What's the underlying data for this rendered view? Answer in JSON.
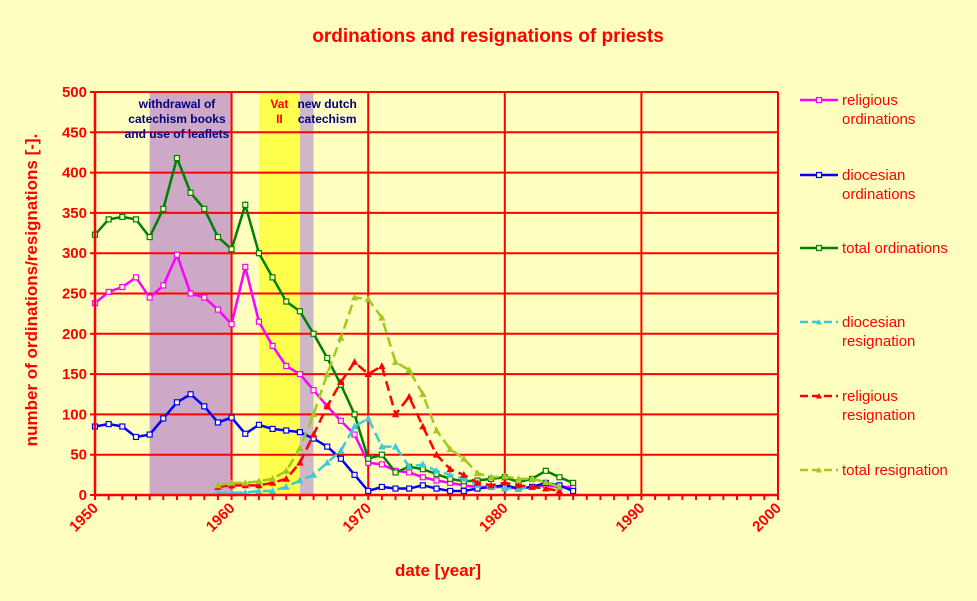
{
  "chart_data": {
    "type": "line",
    "title": "ordinations and resignations of priests",
    "xlabel": "date [year]",
    "ylabel": "number of ordinations/resignations [-].",
    "xlim": [
      1950,
      2000
    ],
    "ylim": [
      0,
      500
    ],
    "x_ticks": [
      "1950",
      "1960",
      "1970",
      "1980",
      "1990",
      "2000"
    ],
    "y_ticks": [
      "0",
      "50",
      "100",
      "150",
      "200",
      "250",
      "300",
      "350",
      "400",
      "450",
      "500"
    ],
    "grid": true,
    "legend_position": "right",
    "shaded_periods": [
      {
        "label_lines": [
          "withdrawal of",
          "catechism books",
          "and use of leaflets"
        ],
        "start": 1954,
        "end": 1960,
        "color": "#c8a0c8"
      },
      {
        "label_lines": [
          "Vat",
          "II"
        ],
        "start": 1962,
        "end": 1965,
        "color": "#ffff40"
      },
      {
        "label_lines": [
          "new dutch",
          "catechism"
        ],
        "start": 1965,
        "end": 1966,
        "color": "#c8b0c8"
      }
    ],
    "series": [
      {
        "name": "religious ordinations",
        "legend_lines": [
          "religious",
          "ordinations"
        ],
        "color": "#ff00ff",
        "dash": "solid",
        "marker": "square",
        "x": [
          1950,
          1951,
          1952,
          1953,
          1954,
          1955,
          1956,
          1957,
          1958,
          1959,
          1960,
          1961,
          1962,
          1963,
          1964,
          1965,
          1966,
          1967,
          1968,
          1969,
          1970,
          1971,
          1972,
          1973,
          1974,
          1975,
          1976,
          1977,
          1978,
          1979,
          1980,
          1981,
          1982,
          1983,
          1984,
          1985
        ],
        "y": [
          238,
          252,
          258,
          270,
          245,
          260,
          298,
          250,
          245,
          230,
          212,
          283,
          215,
          185,
          160,
          150,
          130,
          110,
          92,
          75,
          40,
          38,
          30,
          28,
          22,
          18,
          15,
          12,
          10,
          10,
          10,
          8,
          10,
          12,
          10,
          10
        ]
      },
      {
        "name": "diocesian ordinations",
        "legend_lines": [
          "diocesian",
          "ordinations"
        ],
        "color": "#0000ff",
        "dash": "solid",
        "marker": "square",
        "x": [
          1950,
          1951,
          1952,
          1953,
          1954,
          1955,
          1956,
          1957,
          1958,
          1959,
          1960,
          1961,
          1962,
          1963,
          1964,
          1965,
          1966,
          1967,
          1968,
          1969,
          1970,
          1971,
          1972,
          1973,
          1974,
          1975,
          1976,
          1977,
          1978,
          1979,
          1980,
          1981,
          1982,
          1983,
          1984,
          1985
        ],
        "y": [
          85,
          88,
          85,
          72,
          75,
          95,
          115,
          125,
          110,
          90,
          96,
          76,
          87,
          82,
          80,
          78,
          70,
          60,
          45,
          25,
          5,
          10,
          8,
          8,
          12,
          8,
          5,
          5,
          8,
          10,
          12,
          8,
          10,
          15,
          12,
          5
        ]
      },
      {
        "name": "total ordinations",
        "legend_lines": [
          "total ordinations"
        ],
        "color": "#008000",
        "dash": "solid",
        "marker": "square",
        "x": [
          1950,
          1951,
          1952,
          1953,
          1954,
          1955,
          1956,
          1957,
          1958,
          1959,
          1960,
          1961,
          1962,
          1963,
          1964,
          1965,
          1966,
          1967,
          1968,
          1969,
          1970,
          1971,
          1972,
          1973,
          1974,
          1975,
          1976,
          1977,
          1978,
          1979,
          1980,
          1981,
          1982,
          1983,
          1984,
          1985
        ],
        "y": [
          323,
          342,
          345,
          342,
          320,
          355,
          418,
          375,
          355,
          320,
          305,
          360,
          300,
          270,
          240,
          228,
          200,
          170,
          137,
          100,
          45,
          50,
          28,
          35,
          32,
          26,
          20,
          17,
          18,
          20,
          22,
          16,
          20,
          30,
          22,
          15
        ]
      },
      {
        "name": "diocesian resignation",
        "legend_lines": [
          "diocesian",
          "resignation"
        ],
        "color": "#40c8d8",
        "dash": "dashed",
        "marker": "triangle",
        "x": [
          1959,
          1960,
          1961,
          1962,
          1963,
          1964,
          1965,
          1966,
          1967,
          1968,
          1969,
          1970,
          1971,
          1972,
          1973,
          1974,
          1975,
          1976,
          1977,
          1978,
          1979,
          1980,
          1981,
          1982,
          1983,
          1984
        ],
        "y": [
          2,
          3,
          3,
          5,
          5,
          10,
          18,
          25,
          40,
          55,
          85,
          95,
          60,
          60,
          35,
          38,
          30,
          25,
          20,
          12,
          10,
          8,
          8,
          10,
          8,
          5
        ]
      },
      {
        "name": "religious resignation",
        "legend_lines": [
          "religious",
          "resignation"
        ],
        "color": "#ff0000",
        "dash": "dashed",
        "marker": "triangle",
        "x": [
          1959,
          1960,
          1961,
          1962,
          1963,
          1964,
          1965,
          1966,
          1967,
          1968,
          1969,
          1970,
          1971,
          1972,
          1973,
          1974,
          1975,
          1976,
          1977,
          1978,
          1979,
          1980,
          1981,
          1982,
          1983,
          1984
        ],
        "y": [
          10,
          12,
          12,
          12,
          15,
          20,
          40,
          75,
          110,
          140,
          165,
          150,
          160,
          100,
          122,
          85,
          50,
          32,
          25,
          15,
          12,
          15,
          12,
          10,
          8,
          5
        ]
      },
      {
        "name": "total resignation",
        "legend_lines": [
          "total resignation"
        ],
        "color": "#a0c820",
        "dash": "dashed",
        "marker": "triangle",
        "x": [
          1959,
          1960,
          1961,
          1962,
          1963,
          1964,
          1965,
          1966,
          1967,
          1968,
          1969,
          1970,
          1971,
          1972,
          1973,
          1974,
          1975,
          1976,
          1977,
          1978,
          1979,
          1980,
          1981,
          1982,
          1983,
          1984
        ],
        "y": [
          12,
          15,
          15,
          17,
          20,
          30,
          58,
          100,
          150,
          195,
          245,
          243,
          220,
          165,
          155,
          125,
          80,
          57,
          45,
          27,
          22,
          23,
          20,
          20,
          16,
          10
        ]
      }
    ]
  }
}
